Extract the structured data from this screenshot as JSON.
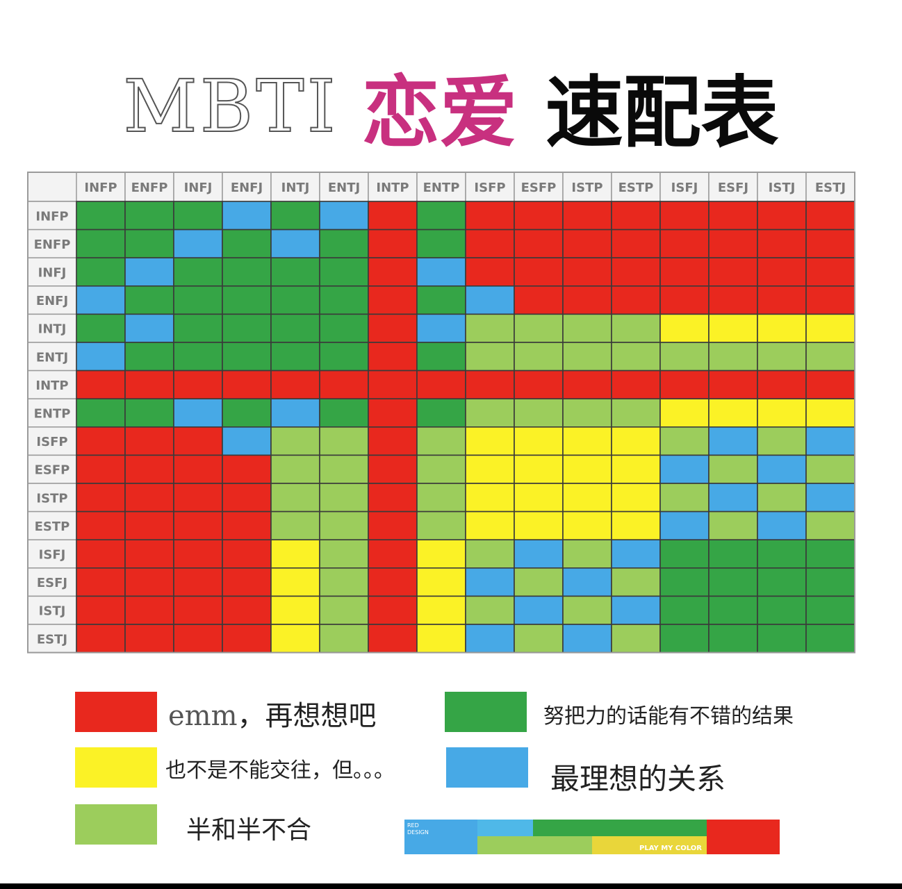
{
  "title": {
    "mbti": "MBTI",
    "love": "恋爱",
    "table": "速配表"
  },
  "colors": {
    "R": "#e8281e",
    "G": "#35a546",
    "L": "#9ccd5c",
    "Y": "#fbf226",
    "B": "#47a9e6"
  },
  "chart_data": {
    "type": "heatmap",
    "x_labels": [
      "INFP",
      "ENFP",
      "INFJ",
      "ENFJ",
      "INTJ",
      "ENTJ",
      "INTP",
      "ENTP",
      "ISFP",
      "ESFP",
      "ISTP",
      "ESTP",
      "ISFJ",
      "ESFJ",
      "ISTJ",
      "ESTJ"
    ],
    "y_labels": [
      "INFP",
      "ENFP",
      "INFJ",
      "ENFJ",
      "INTJ",
      "ENTJ",
      "INTP",
      "ENTP",
      "ISFP",
      "ESFP",
      "ISTP",
      "ESTP",
      "ISFJ",
      "ESFJ",
      "ISTJ",
      "ESTJ"
    ],
    "categories": {
      "R": "emm，再想想吧",
      "G": "努把力的话能有不错的结果",
      "Y": "也不是不能交往，但。。。",
      "B": "最理想的关系",
      "L": "半和半不合"
    },
    "matrix": [
      [
        "G",
        "G",
        "G",
        "B",
        "G",
        "B",
        "R",
        "G",
        "R",
        "R",
        "R",
        "R",
        "R",
        "R",
        "R",
        "R"
      ],
      [
        "G",
        "G",
        "B",
        "G",
        "B",
        "G",
        "R",
        "G",
        "R",
        "R",
        "R",
        "R",
        "R",
        "R",
        "R",
        "R"
      ],
      [
        "G",
        "B",
        "G",
        "G",
        "G",
        "G",
        "R",
        "B",
        "R",
        "R",
        "R",
        "R",
        "R",
        "R",
        "R",
        "R"
      ],
      [
        "B",
        "G",
        "G",
        "G",
        "G",
        "G",
        "R",
        "G",
        "B",
        "R",
        "R",
        "R",
        "R",
        "R",
        "R",
        "R"
      ],
      [
        "G",
        "B",
        "G",
        "G",
        "G",
        "G",
        "R",
        "B",
        "L",
        "L",
        "L",
        "L",
        "Y",
        "Y",
        "Y",
        "Y"
      ],
      [
        "B",
        "G",
        "G",
        "G",
        "G",
        "G",
        "R",
        "G",
        "L",
        "L",
        "L",
        "L",
        "L",
        "L",
        "L",
        "L"
      ],
      [
        "R",
        "R",
        "R",
        "R",
        "R",
        "R",
        "R",
        "R",
        "R",
        "R",
        "R",
        "R",
        "R",
        "R",
        "R",
        "R"
      ],
      [
        "G",
        "G",
        "B",
        "G",
        "B",
        "G",
        "R",
        "G",
        "L",
        "L",
        "L",
        "L",
        "Y",
        "Y",
        "Y",
        "Y"
      ],
      [
        "R",
        "R",
        "R",
        "B",
        "L",
        "L",
        "R",
        "L",
        "Y",
        "Y",
        "Y",
        "Y",
        "L",
        "B",
        "L",
        "B"
      ],
      [
        "R",
        "R",
        "R",
        "R",
        "L",
        "L",
        "R",
        "L",
        "Y",
        "Y",
        "Y",
        "Y",
        "B",
        "L",
        "B",
        "L"
      ],
      [
        "R",
        "R",
        "R",
        "R",
        "L",
        "L",
        "R",
        "L",
        "Y",
        "Y",
        "Y",
        "Y",
        "L",
        "B",
        "L",
        "B"
      ],
      [
        "R",
        "R",
        "R",
        "R",
        "L",
        "L",
        "R",
        "L",
        "Y",
        "Y",
        "Y",
        "Y",
        "B",
        "L",
        "B",
        "L"
      ],
      [
        "R",
        "R",
        "R",
        "R",
        "Y",
        "L",
        "R",
        "Y",
        "L",
        "B",
        "L",
        "B",
        "G",
        "G",
        "G",
        "G"
      ],
      [
        "R",
        "R",
        "R",
        "R",
        "Y",
        "L",
        "R",
        "Y",
        "B",
        "L",
        "B",
        "L",
        "G",
        "G",
        "G",
        "G"
      ],
      [
        "R",
        "R",
        "R",
        "R",
        "Y",
        "L",
        "R",
        "Y",
        "L",
        "B",
        "L",
        "B",
        "G",
        "G",
        "G",
        "G"
      ],
      [
        "R",
        "R",
        "R",
        "R",
        "Y",
        "L",
        "R",
        "Y",
        "B",
        "L",
        "B",
        "L",
        "G",
        "G",
        "G",
        "G"
      ]
    ]
  },
  "legend": {
    "red_prefix": "emm",
    "red_suffix": "，再想想吧",
    "green": "努把力的话能有不错的结果",
    "yellow": "也不是不能交往，但。。。",
    "blue": "最理想的关系",
    "lightgreen": "半和半不合"
  },
  "logo": {
    "red_design": "RED\nDESIGN",
    "play": "PLAY MY COLOR"
  }
}
